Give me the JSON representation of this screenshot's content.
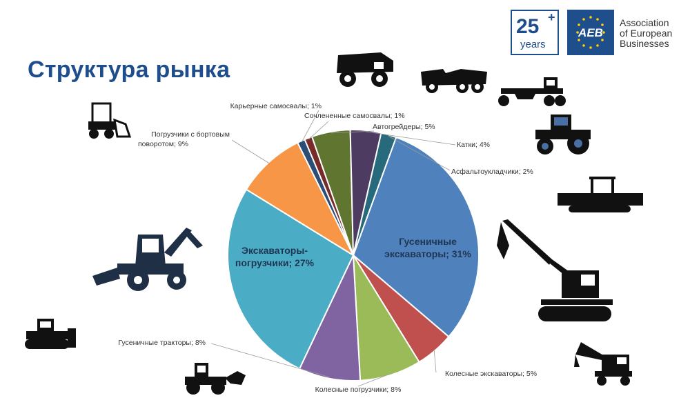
{
  "title": "Структура рынка",
  "logo": {
    "badge_number": "25",
    "badge_plus": "+",
    "badge_years": "years",
    "brand": "AEB",
    "org_name_lines": [
      "Association",
      "of European",
      "Businesses"
    ]
  },
  "chart_data": {
    "type": "pie",
    "title": "",
    "start_angle_deg": 20,
    "direction": "clockwise",
    "slices": [
      {
        "label": "Гусеничные экскаваторы; 31%",
        "inside_label": [
          "Гусеничные",
          "экскаваторы; 31%"
        ],
        "value": 31,
        "color": "#4f81bd"
      },
      {
        "label": "Колесные экскаваторы; 5%",
        "value": 5,
        "color": "#c0504d"
      },
      {
        "label": "Колесные погрузчики; 8%",
        "value": 8,
        "color": "#9bbb59"
      },
      {
        "label": "Гусеничные тракторы; 8%",
        "value": 8,
        "color": "#8064a2"
      },
      {
        "label": "Экскаваторы-погрузчики; 27%",
        "inside_label": [
          "Экскаваторы-",
          "погрузчики; 27%"
        ],
        "value": 27,
        "color": "#4bacc6"
      },
      {
        "label": "Погрузчики с бортовым поворотом; 9%",
        "label_lines": [
          "Погрузчики с бортовым",
          "поворотом; 9%"
        ],
        "value": 9,
        "color": "#f79646"
      },
      {
        "label": "Карьерные самосвалы; 1%",
        "value": 1,
        "color": "#2c4d75"
      },
      {
        "label": "Сочлененные самосвалы; 1%",
        "value": 1,
        "color": "#772c2a"
      },
      {
        "label": "Автогрейдеры; 5%",
        "value": 5,
        "color": "#5f7530"
      },
      {
        "label": "Катки; 4%",
        "value": 4,
        "color": "#4d3b62"
      },
      {
        "label": "Асфальтоукладчики; 2%",
        "value": 2,
        "color": "#276a7c"
      }
    ]
  },
  "icons": [
    "mining-dump-truck-icon",
    "articulated-dump-truck-icon",
    "motor-grader-icon",
    "roller-icon",
    "asphalt-paver-icon",
    "crawler-excavator-icon",
    "wheeled-excavator-icon",
    "wheel-loader-icon",
    "crawler-tractor-icon",
    "backhoe-loader-icon",
    "skid-steer-loader-icon"
  ]
}
